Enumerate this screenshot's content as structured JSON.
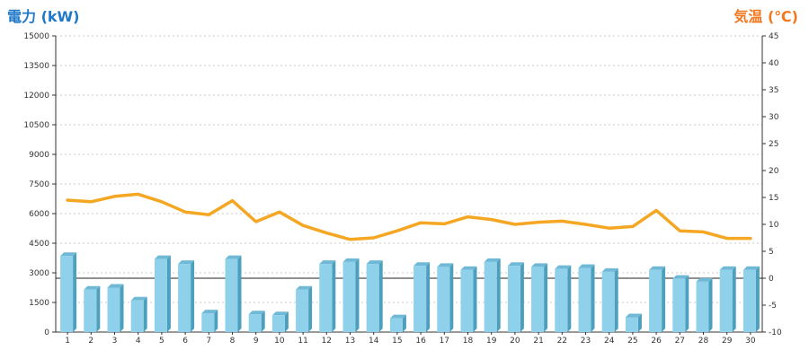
{
  "header": {
    "left_axis_title": "電力 (kW)",
    "right_axis_title": "気温 (℃)"
  },
  "colors": {
    "power_title": "#1f78c8",
    "temp_title": "#f07820",
    "bar_front": "#8fd0ea",
    "bar_side": "#4d9fbe",
    "bar_top": "#6fb9d6",
    "line": "#f5a623",
    "grid": "#c8c8c8",
    "axis": "#333333"
  },
  "chart_data": {
    "type": "bar",
    "categories": [
      "1",
      "2",
      "3",
      "4",
      "5",
      "6",
      "7",
      "8",
      "9",
      "10",
      "11",
      "12",
      "13",
      "14",
      "15",
      "16",
      "17",
      "18",
      "19",
      "20",
      "21",
      "22",
      "23",
      "24",
      "25",
      "26",
      "27",
      "28",
      "29",
      "30"
    ],
    "left_axis": {
      "ticks": [
        "0",
        "1500",
        "3000",
        "4500",
        "6000",
        "7500",
        "9000",
        "10500",
        "12000",
        "13500",
        "15000"
      ],
      "ylim": [
        0,
        15000
      ]
    },
    "right_axis": {
      "ticks": [
        "-10",
        "-5",
        "0",
        "5",
        "10",
        "15",
        "20",
        "25",
        "30",
        "35",
        "40",
        "45"
      ],
      "ylim": [
        -10,
        45
      ]
    },
    "zero_reference_line": 0,
    "grid": true,
    "series": [
      {
        "type": "bar",
        "axis": "left",
        "values": [
          3850,
          2150,
          2250,
          1600,
          3700,
          3450,
          950,
          3700,
          900,
          850,
          2150,
          3450,
          3550,
          3450,
          700,
          3350,
          3300,
          3150,
          3550,
          3350,
          3300,
          3200,
          3250,
          3050,
          750,
          3150,
          2700,
          2550,
          3150,
          3150
        ]
      },
      {
        "type": "line",
        "axis": "right",
        "values": [
          14.5,
          14.2,
          15.2,
          15.6,
          14.2,
          12.3,
          11.8,
          14.4,
          10.5,
          12.3,
          9.8,
          8.4,
          7.2,
          7.5,
          8.8,
          10.3,
          10.1,
          11.4,
          10.9,
          10.0,
          10.4,
          10.6,
          10.0,
          9.3,
          9.6,
          12.6,
          8.8,
          8.6,
          7.4,
          7.4
        ]
      }
    ]
  }
}
